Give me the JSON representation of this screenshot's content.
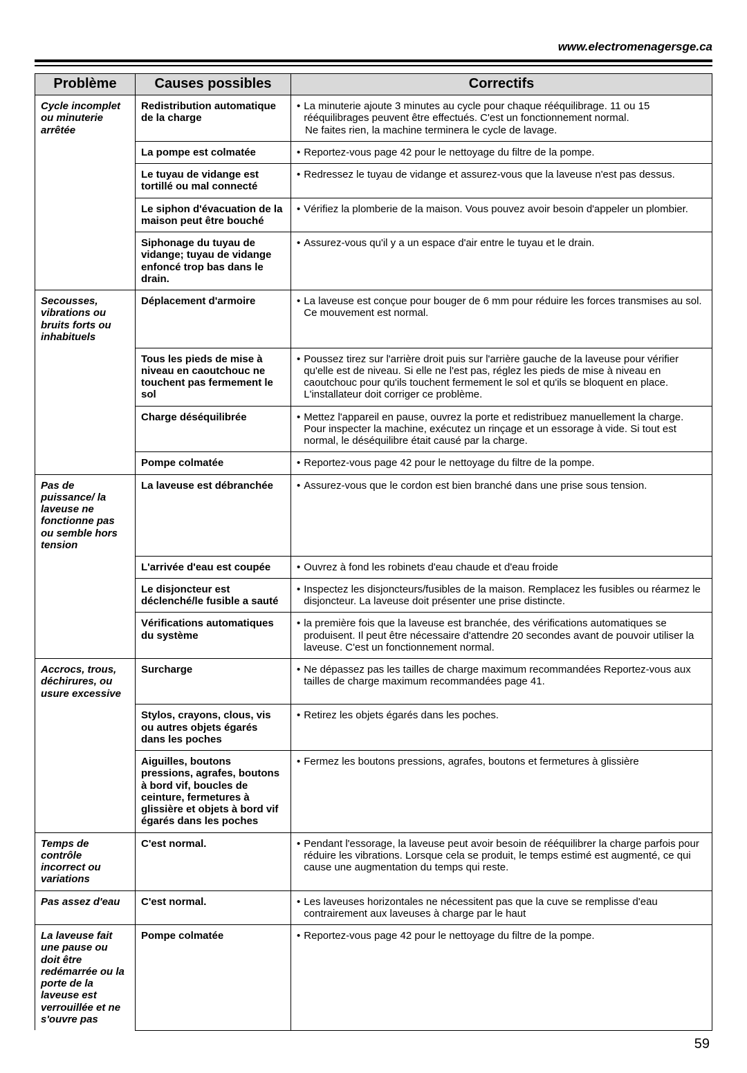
{
  "header_url": "www.electromenagersge.ca",
  "page_number": "59",
  "column_headers": {
    "problem": "Problème",
    "causes": "Causes possibles",
    "fixes": "Correctifs"
  },
  "rows": [
    {
      "problem": "Cycle incomplet ou minuterie arrêtée",
      "cause": "Redistribution automatique de la charge",
      "fix": "La minuterie ajoute 3 minutes au cycle pour chaque rééquilibrage. 11 ou 15 rééquilibrages peuvent être effectués. C'est un fonctionnement normal.",
      "fix_extra": "Ne faites rien, la machine terminera le cycle de lavage."
    },
    {
      "problem": "",
      "cause": "La pompe est colmatée",
      "fix": "Reportez-vous page 42 pour le nettoyage du filtre de la pompe."
    },
    {
      "problem": "",
      "cause": "Le tuyau de vidange est tortillé ou mal connecté",
      "fix": "Redressez le tuyau de vidange et assurez-vous que la laveuse n'est pas dessus."
    },
    {
      "problem": "",
      "cause": "Le siphon d'évacuation de la maison peut être bouché",
      "fix": "Vérifiez la plomberie de la maison. Vous pouvez avoir besoin d'appeler un plombier."
    },
    {
      "problem": "",
      "cause": "Siphonage du tuyau de vidange; tuyau de vidange enfoncé trop bas dans le drain.",
      "fix": "Assurez-vous qu'il y a un espace d'air entre le tuyau et le drain."
    },
    {
      "problem": "Secousses, vibrations ou bruits forts ou inhabituels",
      "cause": "Déplacement d'armoire",
      "fix": "La laveuse est conçue pour bouger de 6 mm pour réduire les forces transmises au sol. Ce mouvement est normal."
    },
    {
      "problem": "",
      "cause": "Tous les pieds de mise à niveau en caoutchouc ne touchent pas fermement le sol",
      "fix": "Poussez tirez sur l'arrière droit puis sur l'arrière gauche de la laveuse pour vérifier qu'elle est de niveau. Si elle ne l'est pas, réglez les pieds de mise à niveau en caoutchouc pour qu'ils touchent fermement le sol et qu'ils se bloquent en place. L'installateur doit corriger ce problème."
    },
    {
      "problem": "",
      "cause": "Charge déséquilibrée",
      "fix": "Mettez l'appareil en pause, ouvrez la porte et redistribuez manuellement la charge. Pour inspecter la machine, exécutez un rinçage et un essorage à vide. Si tout est normal, le déséquilibre était causé par la charge."
    },
    {
      "problem": "",
      "cause": "Pompe colmatée",
      "fix": "Reportez-vous page 42 pour le nettoyage du filtre de la pompe."
    },
    {
      "problem": "Pas de puissance/ la laveuse ne fonctionne pas ou semble hors tension",
      "cause": "La laveuse est débranchée",
      "fix": "Assurez-vous que le cordon est bien branché dans une prise sous tension."
    },
    {
      "problem": "",
      "cause": "L'arrivée d'eau est coupée",
      "fix": "Ouvrez à fond les robinets d'eau chaude et d'eau froide"
    },
    {
      "problem": "",
      "cause": "Le disjoncteur est déclenché/le fusible a sauté",
      "fix": "Inspectez les disjoncteurs/fusibles de la maison. Remplacez les fusibles ou réarmez le disjoncteur. La laveuse doit présenter une prise distincte."
    },
    {
      "problem": "",
      "cause": "Vérifications automatiques du système",
      "fix": "la première fois que la laveuse est branchée, des vérifications automatiques se produisent. Il peut être nécessaire d'attendre 20 secondes avant de pouvoir utiliser la laveuse. C'est un fonctionnement normal."
    },
    {
      "problem": "Accrocs, trous, déchirures, ou usure excessive",
      "cause": "Surcharge",
      "fix": "Ne dépassez pas les tailles de charge maximum recommandées Reportez-vous aux tailles de charge maximum recommandées page 41."
    },
    {
      "problem": "",
      "cause": "Stylos, crayons, clous, vis ou autres objets égarés dans les poches",
      "fix": "Retirez les objets égarés dans les poches."
    },
    {
      "problem": "",
      "cause": "Aiguilles, boutons pressions, agrafes, boutons à bord vif, boucles de ceinture, fermetures à glissière et objets à bord vif égarés dans les poches",
      "fix": "Fermez les boutons pressions, agrafes, boutons et fermetures à glissière"
    },
    {
      "problem": "Temps de contrôle incorrect ou variations",
      "cause": "C'est normal.",
      "fix": "Pendant l'essorage, la laveuse peut avoir besoin de rééquilibrer la charge parfois pour réduire les vibrations. Lorsque cela se produit, le temps estimé est augmenté, ce qui cause une augmentation du temps qui reste."
    },
    {
      "problem": "Pas assez d'eau",
      "cause": "C'est normal.",
      "fix": "Les laveuses horizontales ne nécessitent pas que la cuve se remplisse d'eau contrairement aux laveuses à charge par le haut"
    },
    {
      "problem": "La laveuse fait une pause ou doit être redémarrée ou la porte de la laveuse est verrouillée et ne s'ouvre pas",
      "cause": "Pompe colmatée",
      "fix": "Reportez-vous page 42 pour le nettoyage du filtre de la pompe."
    }
  ]
}
